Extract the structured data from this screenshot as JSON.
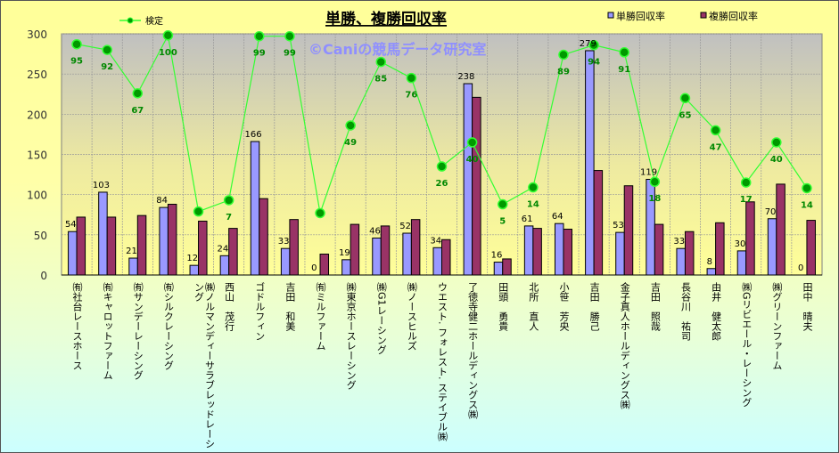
{
  "chart_data": {
    "type": "bar",
    "title": "単勝、複勝回収率",
    "watermark": "©Caniの競馬データ研究室",
    "ylim": [
      0,
      300
    ],
    "yticks": [
      0,
      50,
      100,
      150,
      200,
      250,
      300
    ],
    "grid": true,
    "legend_position": "top",
    "categories": [
      "㈲社台レースホース",
      "㈲キャロットファーム",
      "㈲サンデーレーシング",
      "㈲シルクレーシング",
      "㈱ノルマンディーサラブレッドレーシング",
      "西山　茂行",
      "ゴドルフィン",
      "吉田　和美",
      "㈲ミルファーム",
      "㈱東京ホースレーシング",
      "㈱G1レーシング",
      "㈱ノースヒルズ",
      "ウエスト. フォレスト. ステイブル㈱",
      "了徳寺健二ホールディングス㈱",
      "田頭　勇貴",
      "北所　直人",
      "小笹　芳央",
      "吉田　勝己",
      "金子真人ホールディングス㈱",
      "吉田　照哉",
      "長谷川　祐司",
      "由井　健太郎",
      "㈱Gリビエール・レーシング",
      "㈱グリーンファーム",
      "田中　晴夫"
    ],
    "series": [
      {
        "name": "単勝回収率",
        "type": "bar",
        "color": "#9999ff",
        "values": [
          54,
          103,
          21,
          84,
          12,
          24,
          166,
          33,
          0,
          19,
          46,
          52,
          34,
          238,
          16,
          61,
          64,
          279,
          53,
          119,
          33,
          8,
          30,
          70,
          0
        ],
        "labels": [
          "54",
          "103",
          "21",
          "84",
          "12",
          "24",
          "166",
          "33",
          "0",
          "19",
          "46",
          "52",
          "34",
          "238",
          "16",
          "61",
          "64",
          "279",
          "53",
          "119",
          "33",
          "8",
          "30",
          "70",
          "0"
        ]
      },
      {
        "name": "複勝回収率",
        "type": "bar",
        "color": "#993366",
        "values": [
          72,
          72,
          74,
          88,
          67,
          58,
          95,
          69,
          26,
          63,
          61,
          69,
          44,
          221,
          20,
          58,
          57,
          130,
          111,
          63,
          54,
          65,
          91,
          113,
          68
        ]
      },
      {
        "name": "検定",
        "type": "line",
        "color": "#33ff33",
        "marker_color": "#009900",
        "values": [
          287,
          280,
          226,
          298,
          79,
          93,
          297,
          297,
          77,
          186,
          265,
          245,
          135,
          165,
          88,
          109,
          274,
          286,
          277,
          116,
          220,
          180,
          115,
          165,
          108
        ],
        "labels": [
          "95",
          "92",
          "67",
          "100",
          "",
          "7",
          "99",
          "99",
          "",
          "49",
          "85",
          "76",
          "26",
          "40",
          "5",
          "14",
          "89",
          "94",
          "91",
          "18",
          "65",
          "47",
          "17",
          "40",
          "14"
        ]
      }
    ]
  }
}
